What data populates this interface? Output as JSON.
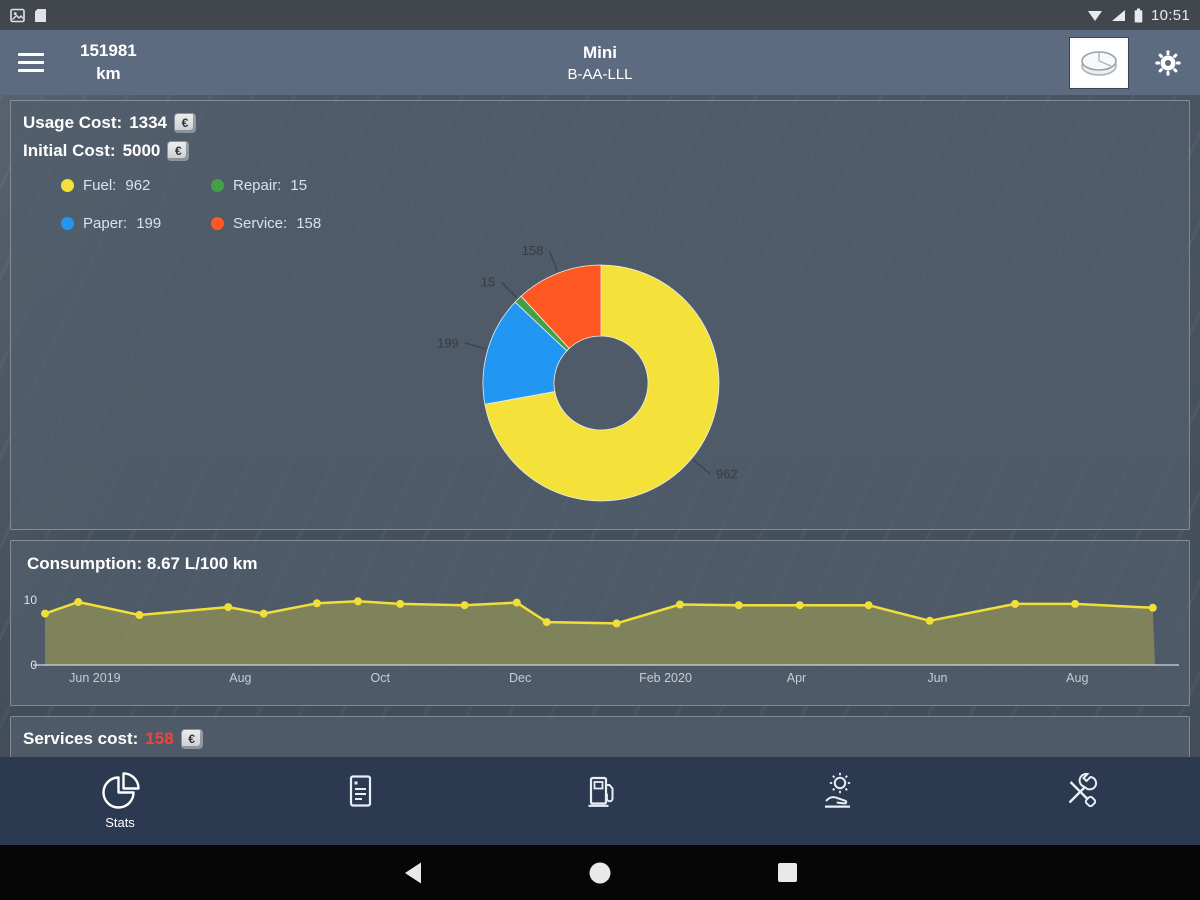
{
  "status_bar": {
    "time": "10:51",
    "icons_left": [
      "photo-icon",
      "notification-icon"
    ],
    "icons_right": [
      "wifi-icon",
      "signal-icon",
      "battery-icon"
    ]
  },
  "app_bar": {
    "odometer_value": "151981",
    "odometer_unit": "km",
    "vehicle_name": "Mini",
    "license_plate": "B-AA-LLL"
  },
  "stats_panel": {
    "usage_cost_label": "Usage Cost:",
    "usage_cost_value": "1334",
    "initial_cost_label": "Initial Cost:",
    "initial_cost_value": "5000",
    "currency_symbol": "€",
    "legend": [
      {
        "label": "Fuel:",
        "value": "962",
        "color": "#f4e23b"
      },
      {
        "label": "Repair:",
        "value": "15",
        "color": "#43a047"
      },
      {
        "label": "Paper:",
        "value": "199",
        "color": "#2196f3"
      },
      {
        "label": "Service:",
        "value": "158",
        "color": "#ff5722"
      }
    ]
  },
  "consumption_panel": {
    "title": "Consumption: 8.67 L/100 km"
  },
  "services_panel": {
    "label": "Services cost:",
    "value": "158",
    "value_color": "#f44336",
    "currency_symbol": "€"
  },
  "bottom_nav": [
    {
      "name": "stats",
      "label": "Stats",
      "active": true
    },
    {
      "name": "documents",
      "active": false
    },
    {
      "name": "fuel",
      "active": false
    },
    {
      "name": "service",
      "active": false
    },
    {
      "name": "tools",
      "active": false
    }
  ],
  "chart_data": [
    {
      "type": "pie",
      "title": "Usage Cost breakdown",
      "donut": true,
      "total": 1334,
      "order": "clockwise-from-top",
      "slices": [
        {
          "label": "Fuel",
          "value": 962,
          "color": "#f4e23b"
        },
        {
          "label": "Paper",
          "value": 199,
          "color": "#2196f3"
        },
        {
          "label": "Repair",
          "value": 15,
          "color": "#43a047"
        },
        {
          "label": "Service",
          "value": 158,
          "color": "#ff5722"
        }
      ]
    },
    {
      "type": "line",
      "title": "Consumption: 8.67 L/100 km",
      "ylim": [
        0,
        10
      ],
      "yticks": [
        0,
        10
      ],
      "line_color": "#f0df3a",
      "fill": true,
      "xticks": [
        {
          "pos": 0.045,
          "label": "Jun 2019"
        },
        {
          "pos": 0.176,
          "label": "Aug"
        },
        {
          "pos": 0.302,
          "label": "Oct"
        },
        {
          "pos": 0.428,
          "label": "Dec"
        },
        {
          "pos": 0.559,
          "label": "Feb 2020"
        },
        {
          "pos": 0.677,
          "label": "Apr"
        },
        {
          "pos": 0.804,
          "label": "Jun"
        },
        {
          "pos": 0.93,
          "label": "Aug"
        }
      ],
      "points": [
        {
          "x": 0.0,
          "y": 7.9
        },
        {
          "x": 0.03,
          "y": 9.7
        },
        {
          "x": 0.085,
          "y": 7.7
        },
        {
          "x": 0.165,
          "y": 8.9
        },
        {
          "x": 0.197,
          "y": 7.9
        },
        {
          "x": 0.245,
          "y": 9.5
        },
        {
          "x": 0.282,
          "y": 9.8
        },
        {
          "x": 0.32,
          "y": 9.4
        },
        {
          "x": 0.378,
          "y": 9.2
        },
        {
          "x": 0.425,
          "y": 9.6
        },
        {
          "x": 0.452,
          "y": 6.6
        },
        {
          "x": 0.515,
          "y": 6.4
        },
        {
          "x": 0.572,
          "y": 9.3
        },
        {
          "x": 0.625,
          "y": 9.2
        },
        {
          "x": 0.68,
          "y": 9.2
        },
        {
          "x": 0.742,
          "y": 9.2
        },
        {
          "x": 0.797,
          "y": 6.8
        },
        {
          "x": 0.874,
          "y": 9.4
        },
        {
          "x": 0.928,
          "y": 9.4
        },
        {
          "x": 0.998,
          "y": 8.8
        }
      ]
    }
  ]
}
